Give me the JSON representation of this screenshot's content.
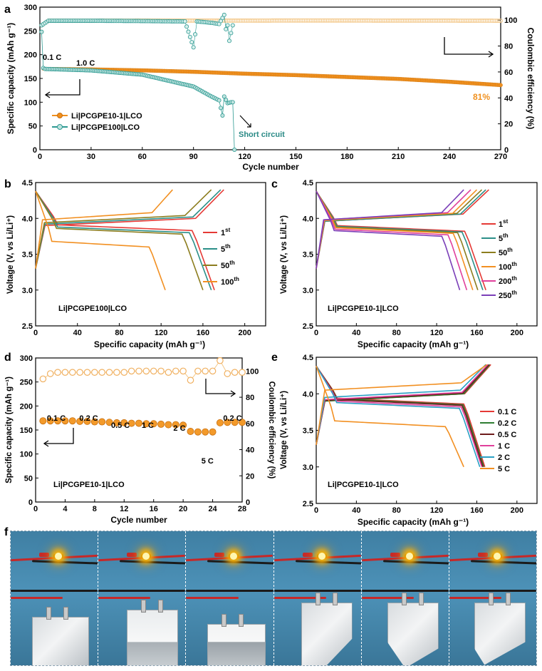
{
  "panels": {
    "a": {
      "label": "a",
      "xlabel": "Cycle number",
      "ylabel_left": "Specific capacity (mAh g⁻¹)",
      "ylabel_right": "Coulombic efficiency (%)",
      "xticks": [
        0,
        30,
        60,
        90,
        120,
        150,
        180,
        210,
        240,
        270
      ],
      "yticks_left": [
        0,
        50,
        100,
        150,
        200,
        250,
        300
      ],
      "yticks_right": [
        0,
        20,
        40,
        60,
        80,
        100
      ],
      "annotations": {
        "rate1": "0.1 C",
        "rate2": "1.0 C",
        "retention": "81%",
        "short": "Short circuit"
      },
      "legend": [
        "Li|PCGPE10-1|LCO",
        "Li|PCGPE100|LCO"
      ]
    },
    "b": {
      "label": "b",
      "xlabel": "Specific capacity (mAh g⁻¹)",
      "ylabel": "Voltage (V, vs Li/Li⁺)",
      "cell": "Li|PCGPE100|LCO",
      "legend": [
        {
          "n": "1",
          "s": "st"
        },
        {
          "n": "5",
          "s": "th"
        },
        {
          "n": "50",
          "s": "th"
        },
        {
          "n": "100",
          "s": "th"
        }
      ],
      "xticks": [
        0,
        40,
        80,
        120,
        160,
        200
      ],
      "yticks": [
        "2.5",
        "3.0",
        "3.5",
        "4.0",
        "4.5"
      ]
    },
    "c": {
      "label": "c",
      "xlabel": "Specific capacity (mAh g⁻¹)",
      "ylabel": "Voltage (V, vs Li/Li⁺)",
      "cell": "Li|PCGPE10-1|LCO",
      "legend": [
        {
          "n": "1",
          "s": "st"
        },
        {
          "n": "5",
          "s": "th"
        },
        {
          "n": "50",
          "s": "th"
        },
        {
          "n": "100",
          "s": "th"
        },
        {
          "n": "200",
          "s": "th"
        },
        {
          "n": "250",
          "s": "th"
        }
      ],
      "xticks": [
        0,
        40,
        80,
        120,
        160,
        200
      ],
      "yticks": [
        "2.5",
        "3.0",
        "3.5",
        "4.0",
        "4.5"
      ]
    },
    "d": {
      "label": "d",
      "xlabel": "Cycle number",
      "ylabel_left": "Specific capacity (mAh g⁻¹)",
      "ylabel_right": "Coulombic efficiency (%)",
      "cell": "Li|PCGPE10-1|LCO",
      "rates": [
        "0.1 C",
        "0.2 C",
        "0.5 C",
        "1 C",
        "2 C",
        "5 C",
        "0.2 C"
      ],
      "xticks": [
        0,
        4,
        8,
        12,
        16,
        20,
        24,
        28
      ],
      "yticks_left": [
        0,
        50,
        100,
        150,
        200,
        250,
        300
      ],
      "yticks_right": [
        0,
        20,
        40,
        60,
        80,
        100
      ]
    },
    "e": {
      "label": "e",
      "xlabel": "Specific capacity (mAh g⁻¹)",
      "ylabel": "Voltage (V, vs Li/Li⁺)",
      "cell": "Li|PCGPE10-1|LCO",
      "legend": [
        "0.1 C",
        "0.2 C",
        "0.5 C",
        "1 C",
        "2 C",
        "5 C"
      ],
      "xticks": [
        0,
        40,
        80,
        120,
        160,
        200
      ],
      "yticks": [
        "2.5",
        "3.0",
        "3.5",
        "4.0",
        "4.5"
      ]
    },
    "f": {
      "label": "f",
      "photo_count": 6
    }
  },
  "chart_data": [
    {
      "panel": "a",
      "type": "scatter",
      "title": "",
      "xlim": [
        0,
        270
      ],
      "ylim": [
        0,
        300
      ],
      "y2lim": [
        0,
        110
      ],
      "series": [
        {
          "name": "Li|PCGPE10-1|LCO capacity",
          "color": "#f0901e",
          "x": [
            1,
            2,
            3,
            30,
            60,
            90,
            120,
            150,
            180,
            210,
            240,
            270
          ],
          "y": [
            248,
            171,
            170,
            169,
            167,
            164,
            160,
            157,
            153,
            149,
            143,
            136
          ]
        },
        {
          "name": "Li|PCGPE100|LCO capacity",
          "color": "#2e9a92",
          "x": [
            1,
            2,
            3,
            30,
            60,
            90,
            100,
            105,
            107,
            108,
            110,
            112,
            113,
            114
          ],
          "y": [
            248,
            172,
            170,
            167,
            158,
            133,
            113,
            104,
            72,
            112,
            98,
            100,
            100,
            0
          ]
        },
        {
          "name": "Li|PCGPE10-1|LCO CE",
          "color": "#f3c88a",
          "x": [
            1,
            5,
            30,
            60,
            90,
            120,
            150,
            180,
            210,
            240,
            270
          ],
          "y": [
            96,
            99.5,
            99.5,
            99.6,
            99.6,
            99.6,
            99.7,
            99.7,
            99.6,
            99.6,
            99.5
          ]
        },
        {
          "name": "Li|PCGPE100|LCO CE",
          "color": "#2e9a92",
          "x": [
            1,
            5,
            30,
            60,
            85,
            90,
            92,
            100,
            105,
            108,
            109,
            110,
            111,
            112,
            113
          ],
          "y": [
            96,
            99.5,
            99.5,
            99.3,
            99.0,
            79,
            99,
            98,
            97,
            104,
            93,
            96,
            84,
            90,
            96
          ]
        }
      ]
    },
    {
      "panel": "b",
      "type": "line",
      "xlim": [
        0,
        220
      ],
      "ylim": [
        2.5,
        4.5
      ],
      "series": [
        {
          "name": "1st",
          "color": "#e53935",
          "cap": 171,
          "chgmax": 180
        },
        {
          "name": "5th",
          "color": "#2b8f88",
          "cap": 168,
          "chgmax": 177
        },
        {
          "name": "50th",
          "color": "#8c7d1e",
          "cap": 160,
          "chgmax": 168
        },
        {
          "name": "100th",
          "color": "#f29022",
          "cap": 124,
          "chgmax": 131
        }
      ]
    },
    {
      "panel": "c",
      "type": "line",
      "xlim": [
        0,
        220
      ],
      "ylim": [
        2.5,
        4.5
      ],
      "series": [
        {
          "name": "1st",
          "color": "#e53935",
          "cap": 169,
          "chgmax": 172
        },
        {
          "name": "5th",
          "color": "#2b8f88",
          "cap": 166,
          "chgmax": 169
        },
        {
          "name": "50th",
          "color": "#8c7d1e",
          "cap": 161,
          "chgmax": 165
        },
        {
          "name": "100th",
          "color": "#f29022",
          "cap": 156,
          "chgmax": 160
        },
        {
          "name": "200th",
          "color": "#e0409b",
          "cap": 150,
          "chgmax": 154
        },
        {
          "name": "250th",
          "color": "#7b3fb8",
          "cap": 143,
          "chgmax": 147
        }
      ]
    },
    {
      "panel": "d",
      "type": "scatter",
      "xlim": [
        0,
        28
      ],
      "ylim": [
        0,
        300
      ],
      "y2lim": [
        0,
        110
      ],
      "x": [
        1,
        2,
        3,
        4,
        5,
        6,
        7,
        8,
        9,
        10,
        11,
        12,
        13,
        14,
        15,
        16,
        17,
        18,
        19,
        20,
        21,
        22,
        23,
        24,
        25,
        26,
        27,
        28
      ],
      "capacity": [
        169,
        169,
        169,
        169,
        169,
        168,
        168,
        167,
        167,
        166,
        165,
        165,
        164,
        164,
        163,
        163,
        162,
        161,
        161,
        160,
        147,
        146,
        146,
        146,
        165,
        166,
        166,
        166
      ],
      "efficiency": [
        94,
        98,
        99,
        99,
        99,
        99,
        99,
        99,
        99,
        99,
        99,
        99,
        100,
        100,
        100,
        100,
        100,
        99,
        100,
        100,
        93,
        100,
        100,
        100,
        108,
        98,
        99,
        99
      ]
    },
    {
      "panel": "e",
      "type": "line",
      "xlim": [
        0,
        220
      ],
      "ylim": [
        2.5,
        4.5
      ],
      "series": [
        {
          "name": "0.1 C",
          "color": "#e53935",
          "cap": 168
        },
        {
          "name": "0.2 C",
          "color": "#2e7d32",
          "cap": 167
        },
        {
          "name": "0.5 C",
          "color": "#6d1b1b",
          "cap": 166
        },
        {
          "name": "1 C",
          "color": "#e0409b",
          "cap": 165
        },
        {
          "name": "2 C",
          "color": "#2aa0c4",
          "cap": 163
        },
        {
          "name": "5 C",
          "color": "#f29022",
          "cap": 147
        }
      ]
    }
  ]
}
